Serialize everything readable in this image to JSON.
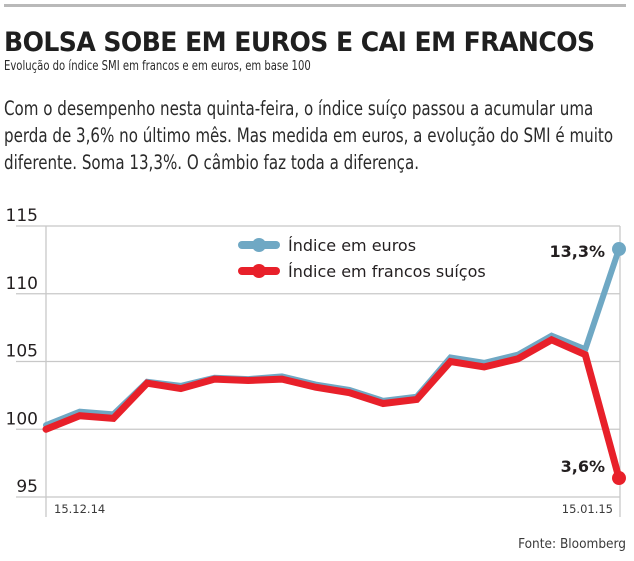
{
  "header": {
    "title": "BOLSA SOBE EM EUROS E CAI EM FRANCOS",
    "subtitle": "Evolução do índice SMI em francos e em euros, em base 100",
    "lead": "Com o desempenho nesta quinta-feira, o índice suíço passou a acumular uma perda de 3,6% no último mês. Mas medida em euros, a evolução do SMI é muito diferente. Soma 13,3%. O câmbio faz toda a diferença."
  },
  "source": "Fonte: Bloomberg",
  "colors": {
    "euros": "#6fa8c4",
    "francos": "#e8202a",
    "grid": "#c8c8c8"
  },
  "chart_data": {
    "type": "line",
    "title": "BOLSA SOBE EM EUROS E CAI EM FRANCOS",
    "xlabel": "",
    "ylabel": "",
    "ylim": [
      95,
      115
    ],
    "yticks": [
      95,
      100,
      105,
      110,
      115
    ],
    "ytick_labels": [
      "95",
      "100",
      "105",
      "110",
      "115"
    ],
    "x_labels": [
      {
        "index": 0,
        "label": "15.12.14"
      },
      {
        "index": 17,
        "label": "15.01.15"
      }
    ],
    "grid": true,
    "legend_position": "top-center",
    "series": [
      {
        "name": "Índice em euros",
        "color": "#6fa8c4",
        "values": [
          100.3,
          101.3,
          101.1,
          103.5,
          103.2,
          103.8,
          103.7,
          103.9,
          103.3,
          102.9,
          102.1,
          102.4,
          105.3,
          104.9,
          105.5,
          106.9,
          105.9,
          113.3
        ],
        "end_label": "13,3%"
      },
      {
        "name": "Índice em francos suíços",
        "color": "#e8202a",
        "values": [
          100.0,
          101.0,
          100.8,
          103.4,
          103.0,
          103.7,
          103.6,
          103.7,
          103.1,
          102.7,
          101.9,
          102.2,
          105.0,
          104.6,
          105.2,
          106.6,
          105.5,
          96.4
        ],
        "end_label": "3,6%"
      }
    ]
  }
}
